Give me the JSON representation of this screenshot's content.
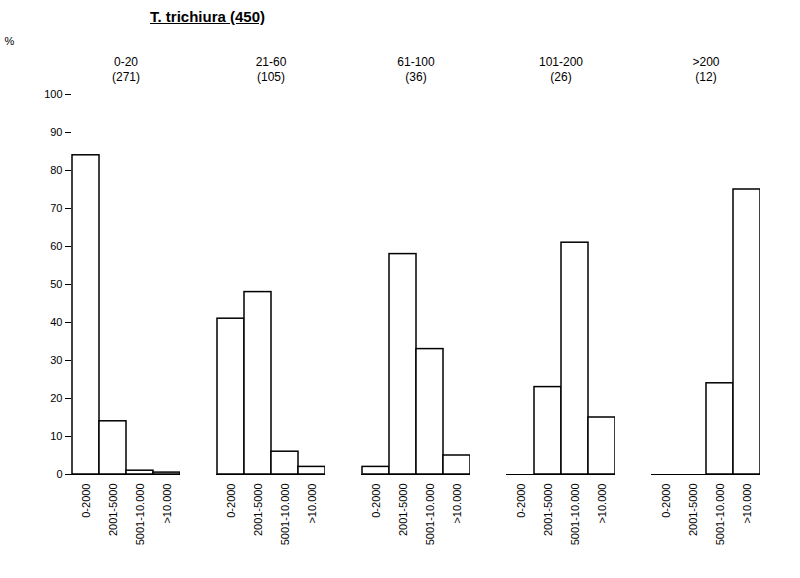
{
  "chart_data": {
    "type": "bar",
    "title": "T. trichiura (450)",
    "y_label": "%",
    "categories": [
      "0-2000",
      "2001-5000",
      "5001-10.000",
      ">10.000"
    ],
    "panels": [
      {
        "title": "0-20",
        "subtitle": "(271)",
        "values": [
          84,
          14,
          1,
          0.5
        ]
      },
      {
        "title": "21-60",
        "subtitle": "(105)",
        "values": [
          41,
          48,
          6,
          2
        ]
      },
      {
        "title": "61-100",
        "subtitle": "(36)",
        "values": [
          2,
          58,
          33,
          5
        ]
      },
      {
        "title": "101-200",
        "subtitle": "(26)",
        "values": [
          0,
          23,
          61,
          15
        ]
      },
      {
        "title": ">200",
        "subtitle": "(12)",
        "values": [
          0,
          0,
          24,
          75
        ]
      }
    ],
    "color": "#ffffff",
    "ylim": [
      0,
      100
    ],
    "yticks": [
      0,
      10,
      20,
      30,
      40,
      50,
      60,
      70,
      80,
      90,
      100
    ],
    "grid": false
  }
}
